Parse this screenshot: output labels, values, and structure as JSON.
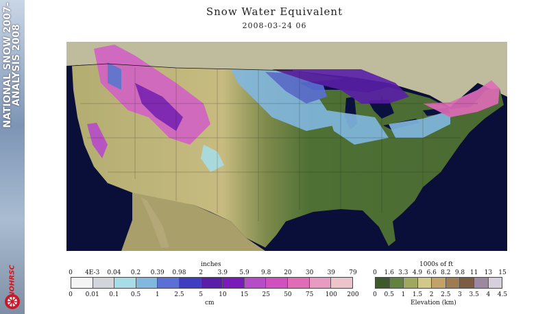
{
  "sidebar": {
    "title_line1": "NATIONAL SNOW 2007-",
    "title_line2": "ANALYSIS 2008",
    "logo_text": "NOHRSC"
  },
  "map": {
    "title": "Snow Water Equivalent",
    "timestamp": "2008-03-24 06"
  },
  "swe_legend": {
    "top_unit": "inches",
    "bottom_unit": "cm",
    "top_ticks": [
      "0",
      "4E-3",
      "0.04",
      "0.2",
      "0.39",
      "0.98",
      "2",
      "3.9",
      "5.9",
      "9.8",
      "20",
      "30",
      "39",
      "79"
    ],
    "bottom_ticks": [
      "0",
      "0.01",
      "0.1",
      "0.5",
      "1",
      "2.5",
      "5",
      "10",
      "15",
      "25",
      "50",
      "75",
      "100",
      "200"
    ],
    "colors": [
      "#f4f4f4",
      "#d2d6da",
      "#a7dde6",
      "#82b8e0",
      "#5b6fd6",
      "#3f3ec0",
      "#5a1fa8",
      "#7a1ab8",
      "#b64cc8",
      "#d050c0",
      "#e06cb8",
      "#e89ac0",
      "#eec4cc"
    ]
  },
  "elevation_legend": {
    "top_unit": "1000s of ft",
    "bottom_unit": "Elevation (km)",
    "top_ticks": [
      "0",
      "1.6",
      "3.3",
      "4.9",
      "6.6",
      "8.2",
      "9.8",
      "11",
      "13",
      "15"
    ],
    "bottom_ticks": [
      "0",
      "0.5",
      "1",
      "1.5",
      "2",
      "2.5",
      "3",
      "3.5",
      "4",
      "4.5"
    ],
    "colors": [
      "#3e5a2c",
      "#62823e",
      "#a0a860",
      "#d2c88a",
      "#c2a268",
      "#9e7c52",
      "#7c5c42",
      "#9c88a0",
      "#d6d0dc"
    ]
  },
  "colors": {
    "ocean": "#0a0f3a",
    "land_low": "#4e7034",
    "land_high": "#c7bb80",
    "canada": "#bfbc9e",
    "lakes": "#0a1040"
  }
}
